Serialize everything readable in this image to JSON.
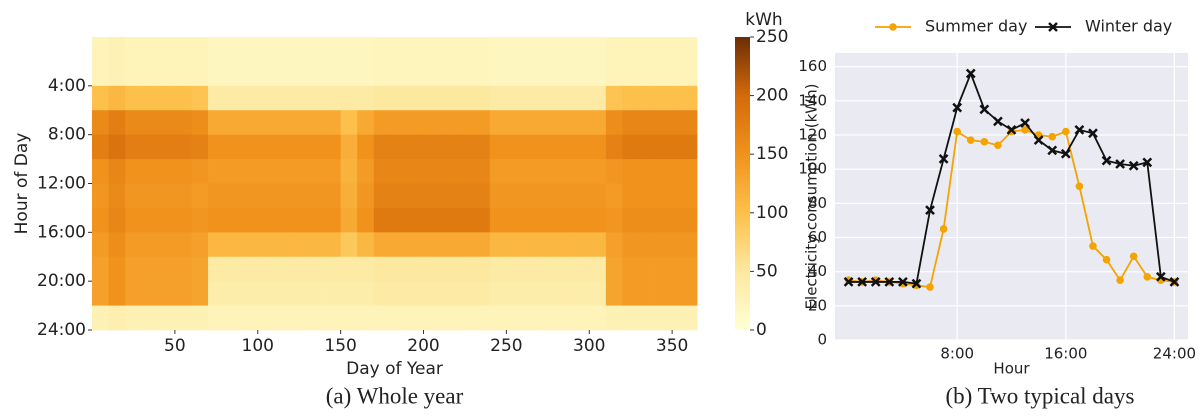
{
  "chart_data": [
    {
      "type": "heatmap",
      "xlabel": "Day of Year",
      "ylabel": "Hour of Day",
      "caption": "(a) Whole year",
      "colorbar_label": "kWh",
      "xlim": [
        0,
        365
      ],
      "ylim": [
        24,
        0
      ],
      "xticks": [
        50,
        100,
        150,
        200,
        250,
        300,
        350
      ],
      "yticks": [
        {
          "value": 4,
          "label": "4:00"
        },
        {
          "value": 8,
          "label": "8:00"
        },
        {
          "value": 12,
          "label": "12:00"
        },
        {
          "value": 16,
          "label": "16:00"
        },
        {
          "value": 20,
          "label": "20:00"
        },
        {
          "value": 24,
          "label": "24:00"
        }
      ],
      "clim": [
        0,
        250
      ],
      "cticks": [
        0,
        50,
        100,
        150,
        200,
        250
      ],
      "colorscale": [
        "#ffffd4",
        "#fde8a0",
        "#fdc04a",
        "#f0921c",
        "#d46a0a",
        "#6b2d06"
      ],
      "xbins": [
        0,
        10,
        20,
        30,
        40,
        50,
        60,
        70,
        80,
        90,
        100,
        110,
        120,
        130,
        140,
        150,
        160,
        170,
        180,
        190,
        200,
        210,
        220,
        230,
        240,
        250,
        260,
        270,
        280,
        290,
        300,
        310,
        320,
        330,
        340,
        350,
        360,
        365
      ],
      "ybins": [
        0,
        2,
        4,
        6,
        8,
        10,
        12,
        14,
        16,
        18,
        20,
        22,
        24
      ],
      "values": [
        [
          25,
          30,
          25,
          25,
          25,
          25,
          25,
          20,
          20,
          20,
          20,
          20,
          20,
          20,
          20,
          20,
          20,
          22,
          22,
          22,
          22,
          22,
          22,
          22,
          20,
          20,
          20,
          20,
          20,
          20,
          20,
          25,
          25,
          25,
          25,
          25,
          25
        ],
        [
          25,
          30,
          25,
          25,
          25,
          25,
          25,
          20,
          20,
          20,
          20,
          20,
          20,
          20,
          20,
          20,
          20,
          22,
          22,
          22,
          22,
          22,
          22,
          22,
          20,
          20,
          20,
          20,
          20,
          20,
          20,
          25,
          25,
          25,
          25,
          25,
          25
        ],
        [
          100,
          110,
          100,
          100,
          100,
          100,
          95,
          45,
          45,
          45,
          45,
          45,
          45,
          45,
          45,
          45,
          45,
          50,
          50,
          50,
          50,
          50,
          50,
          50,
          45,
          45,
          45,
          45,
          45,
          45,
          45,
          95,
          100,
          100,
          100,
          100,
          100
        ],
        [
          160,
          175,
          160,
          160,
          160,
          160,
          155,
          125,
          125,
          125,
          125,
          125,
          125,
          125,
          125,
          100,
          125,
          140,
          140,
          140,
          140,
          140,
          140,
          140,
          125,
          125,
          125,
          125,
          125,
          125,
          125,
          155,
          165,
          165,
          165,
          165,
          165
        ],
        [
          175,
          190,
          175,
          175,
          175,
          175,
          170,
          150,
          150,
          150,
          150,
          150,
          150,
          150,
          150,
          120,
          150,
          170,
          170,
          170,
          170,
          170,
          170,
          170,
          150,
          150,
          150,
          150,
          150,
          150,
          150,
          170,
          180,
          180,
          180,
          180,
          180
        ],
        [
          150,
          165,
          150,
          150,
          150,
          150,
          145,
          140,
          140,
          140,
          140,
          140,
          140,
          140,
          140,
          115,
          140,
          165,
          165,
          165,
          165,
          165,
          165,
          165,
          140,
          140,
          140,
          140,
          140,
          140,
          140,
          145,
          150,
          150,
          150,
          150,
          150
        ],
        [
          145,
          160,
          145,
          145,
          145,
          145,
          140,
          145,
          145,
          145,
          145,
          145,
          145,
          145,
          145,
          120,
          145,
          170,
          170,
          170,
          170,
          170,
          170,
          170,
          145,
          145,
          145,
          145,
          145,
          145,
          145,
          140,
          150,
          150,
          150,
          150,
          150
        ],
        [
          150,
          165,
          150,
          150,
          150,
          150,
          145,
          150,
          150,
          150,
          150,
          150,
          150,
          150,
          150,
          125,
          150,
          180,
          180,
          180,
          180,
          180,
          180,
          180,
          150,
          150,
          150,
          150,
          150,
          150,
          150,
          145,
          155,
          155,
          155,
          155,
          155
        ],
        [
          140,
          155,
          140,
          140,
          140,
          140,
          135,
          110,
          110,
          110,
          110,
          110,
          110,
          110,
          110,
          90,
          110,
          125,
          125,
          125,
          125,
          125,
          125,
          125,
          110,
          110,
          110,
          110,
          110,
          110,
          110,
          135,
          145,
          145,
          145,
          145,
          145
        ],
        [
          135,
          150,
          135,
          135,
          135,
          135,
          130,
          45,
          45,
          45,
          45,
          45,
          45,
          45,
          45,
          45,
          45,
          50,
          50,
          50,
          50,
          50,
          50,
          50,
          45,
          45,
          45,
          45,
          45,
          45,
          45,
          130,
          140,
          140,
          140,
          140,
          140
        ],
        [
          135,
          150,
          135,
          135,
          135,
          135,
          130,
          40,
          40,
          40,
          40,
          40,
          40,
          40,
          40,
          40,
          40,
          45,
          45,
          45,
          45,
          45,
          45,
          45,
          40,
          40,
          40,
          40,
          40,
          40,
          40,
          130,
          140,
          140,
          140,
          140,
          140
        ],
        [
          30,
          35,
          30,
          30,
          30,
          30,
          30,
          25,
          25,
          25,
          25,
          25,
          25,
          25,
          25,
          25,
          25,
          25,
          25,
          25,
          25,
          25,
          25,
          25,
          25,
          25,
          25,
          25,
          25,
          25,
          25,
          30,
          30,
          30,
          30,
          30,
          30
        ]
      ]
    },
    {
      "type": "line",
      "xlabel": "Hour",
      "ylabel": "Electricity consumption (kWh)",
      "caption": "(b) Two typical days",
      "xlim": [
        -1,
        25
      ],
      "ylim": [
        0,
        168
      ],
      "xticks": [
        {
          "value": 8,
          "label": "8:00"
        },
        {
          "value": 16,
          "label": "16:00"
        },
        {
          "value": 24,
          "label": "24:00"
        }
      ],
      "yticks": [
        0,
        20,
        40,
        60,
        80,
        100,
        120,
        140,
        160
      ],
      "grid": true,
      "x": [
        0,
        1,
        2,
        3,
        4,
        5,
        6,
        7,
        8,
        9,
        10,
        11,
        12,
        13,
        14,
        15,
        16,
        17,
        18,
        19,
        20,
        21,
        22,
        23,
        24
      ],
      "series": [
        {
          "name": "Summer day",
          "color": "#f5a300",
          "marker": "circle",
          "values": [
            35,
            34,
            35,
            34,
            33,
            32,
            31,
            65,
            122,
            117,
            116,
            114,
            122,
            123,
            120,
            119,
            122,
            90,
            55,
            47,
            35,
            49,
            37,
            35,
            34
          ]
        },
        {
          "name": "Winter day",
          "color": "#111111",
          "marker": "x",
          "values": [
            34,
            34,
            34,
            34,
            34,
            33,
            76,
            106,
            136,
            156,
            135,
            128,
            123,
            127,
            117,
            111,
            109,
            123,
            121,
            105,
            103,
            102,
            104,
            37,
            34
          ]
        }
      ]
    }
  ]
}
